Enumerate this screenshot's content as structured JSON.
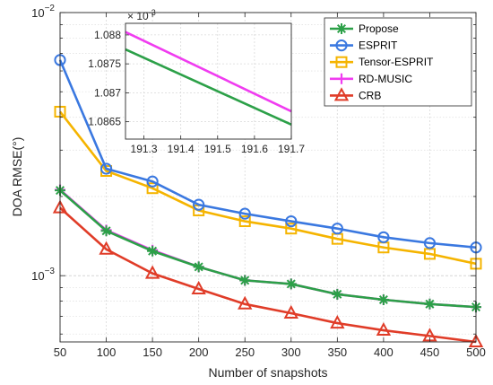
{
  "chart_data": {
    "type": "line",
    "title": "",
    "xlabel": "Number of snapshots",
    "ylabel": "DOA RMSE(°)",
    "yscale": "log",
    "x": [
      50,
      100,
      150,
      200,
      250,
      300,
      350,
      400,
      450,
      500
    ],
    "xlim": [
      50,
      500
    ],
    "ylim": [
      0.00056,
      0.01
    ],
    "x_tick_labels": [
      "50",
      "100",
      "150",
      "200",
      "250",
      "300",
      "350",
      "400",
      "450",
      "500"
    ],
    "y_tick_labels": [
      {
        "mantissa": "10",
        "exponent": "−2",
        "value": 0.01
      },
      {
        "mantissa": "10",
        "exponent": "−3",
        "value": 0.001
      }
    ],
    "grid": true,
    "legend_position": "top-right",
    "series": [
      {
        "name": "Propose",
        "color": "#2ca048",
        "marker": "asterisk",
        "values": [
          0.00211,
          0.00148,
          0.00124,
          0.00108,
          0.00096,
          0.00093,
          0.00085,
          0.00081,
          0.00078,
          0.00076
        ]
      },
      {
        "name": "ESPRIT",
        "color": "#3a78e0",
        "marker": "circle",
        "values": [
          0.0066,
          0.00255,
          0.00228,
          0.00186,
          0.00172,
          0.00161,
          0.00151,
          0.0014,
          0.00133,
          0.00128
        ]
      },
      {
        "name": "Tensor-ESPRIT",
        "color": "#f5b400",
        "marker": "square",
        "values": [
          0.0042,
          0.0025,
          0.00215,
          0.00177,
          0.00161,
          0.00151,
          0.00138,
          0.00128,
          0.00121,
          0.00111
        ]
      },
      {
        "name": "RD-MUSIC",
        "color": "#f03cf0",
        "marker": "plus",
        "values": [
          0.00212,
          0.00149,
          0.00125,
          0.00108,
          0.00096,
          0.00093,
          0.00085,
          0.00081,
          0.00078,
          0.00076
        ]
      },
      {
        "name": "CRB",
        "color": "#e03c28",
        "marker": "triangle",
        "values": [
          0.00181,
          0.00126,
          0.00102,
          0.00089,
          0.00078,
          0.00072,
          0.00066,
          0.00062,
          0.00059,
          0.00056
        ]
      }
    ],
    "inset": {
      "type": "line",
      "xlim": [
        191.25,
        191.7
      ],
      "ylim": [
        0.0010862,
        0.0010882
      ],
      "x_tick_labels": [
        "191.3",
        "191.4",
        "191.5",
        "191.6",
        "191.7"
      ],
      "x_ticks": [
        191.3,
        191.4,
        191.5,
        191.6,
        191.7
      ],
      "y_tick_labels": [
        "1.0865",
        "1.087",
        "1.0875",
        "1.088"
      ],
      "y_ticks": [
        0.0010865,
        0.001087,
        0.0010875,
        0.001088
      ],
      "y_multiplier_label": {
        "mantissa": "× 10",
        "exponent": "-3"
      },
      "grid": true,
      "series": [
        {
          "name": "Propose",
          "color": "#2ca048",
          "x": [
            191.25,
            191.7
          ],
          "values": [
            0.00108775,
            0.00108645
          ]
        },
        {
          "name": "RD-MUSIC",
          "color": "#f03cf0",
          "x": [
            191.25,
            191.7
          ],
          "values": [
            0.00108805,
            0.00108668
          ]
        }
      ]
    }
  }
}
